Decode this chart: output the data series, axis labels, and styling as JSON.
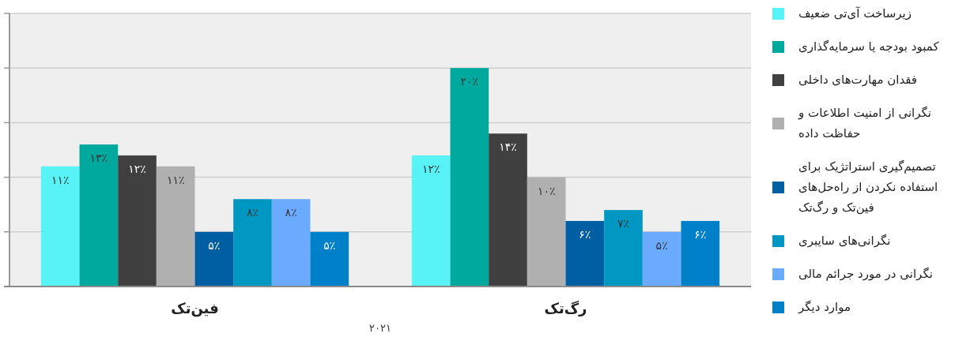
{
  "chart_data": {
    "type": "bar",
    "categories": [
      "فین‌تک",
      "رگ‌تک"
    ],
    "xlabel": "۲۰۲۱",
    "ylim": [
      0,
      25
    ],
    "yticks": [
      {
        "value": 0,
        "label": null
      },
      {
        "value": 5,
        "label": null
      },
      {
        "value": 10,
        "label": null
      },
      {
        "value": 15,
        "label": null
      },
      {
        "value": 20,
        "label": null
      },
      {
        "value": 25,
        "label": null
      }
    ],
    "tick_labels": "x",
    "grid": "y",
    "legend": "right",
    "series": [
      {
        "name": "زیرساخت آی‌تی ضعیف",
        "color": "#57f3f7",
        "values": [
          11,
          12
        ],
        "value_labels": [
          "۱۱٪",
          "۱۲٪"
        ]
      },
      {
        "name": "کمبود بودجه یا سرمایه‌گذاری",
        "color": "#00a99d",
        "values": [
          13,
          20
        ],
        "value_labels": [
          "۱۳٪",
          "۲۰٪"
        ]
      },
      {
        "name": "فقدان مهارت‌های داخلی",
        "color": "#404040",
        "values": [
          12,
          14
        ],
        "value_labels": [
          "۱۲٪",
          "۱۴٪"
        ]
      },
      {
        "name": "نگرانی از امنیت اطلاعات و حفاظت داده",
        "color": "#b0b0b0",
        "values": [
          11,
          10
        ],
        "value_labels": [
          "۱۱٪",
          "۱۰٪"
        ]
      },
      {
        "name": "تصمیم‌گیری استراتژیک برای استفاده نکردن از راه‌حل‌های فین‌تک و رگ‌تک",
        "color": "#005ea2",
        "values": [
          5,
          6
        ],
        "value_labels": [
          "۵٪",
          "۶٪"
        ]
      },
      {
        "name": "نگرانی‌های سایبری",
        "color": "#0098c3",
        "values": [
          8,
          7
        ],
        "value_labels": [
          "۸٪",
          "۷٪"
        ]
      },
      {
        "name": "نگرانی در مورد جرائم مالی",
        "color": "#6aabff",
        "values": [
          8,
          5
        ],
        "value_labels": [
          "۸٪",
          "۵٪"
        ]
      },
      {
        "name": "موارد دیگر",
        "color": "#0080c8",
        "values": [
          5,
          6
        ],
        "value_labels": [
          "۵٪",
          "۶٪"
        ]
      }
    ]
  }
}
